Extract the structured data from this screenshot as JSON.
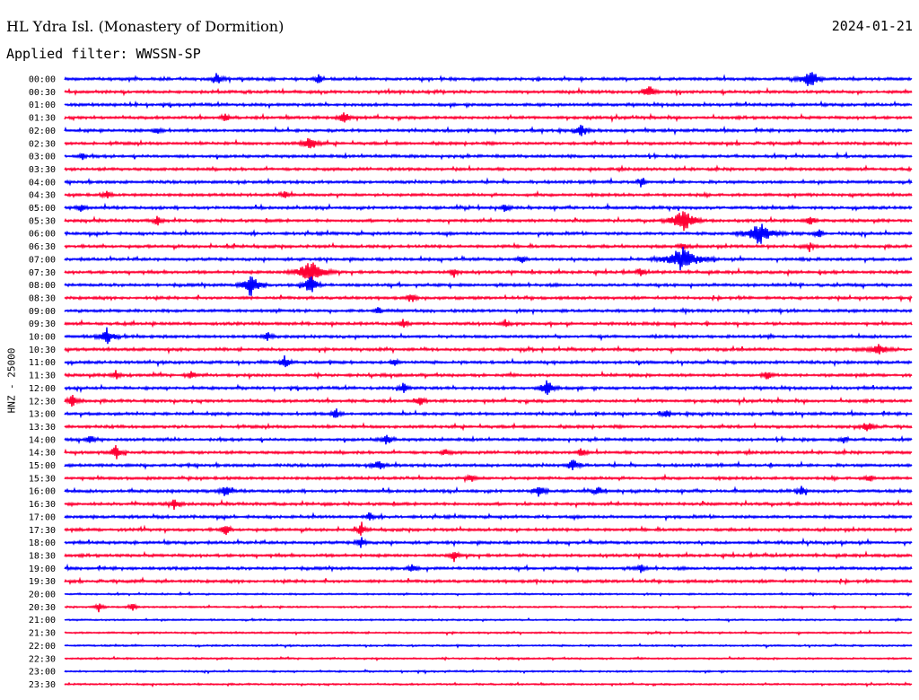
{
  "header": {
    "title": "HL Ydra Isl. (Monastery of Dormition)",
    "date": "2024-01-21",
    "filter": "Applied filter: WWSSN-SP"
  },
  "chart_data": {
    "type": "line",
    "title": "HL Ydra Isl. (Monastery of Dormition)",
    "ylabel": "HNZ - 25000",
    "xlabel": "",
    "grid": false,
    "colors": {
      "even": "#0000ff",
      "odd": "#ff0033"
    },
    "series": [
      {
        "label": "00:00",
        "color": "#0000ff",
        "events": [
          [
            0.18,
            0.5,
            4
          ],
          [
            0.3,
            0.4,
            3
          ],
          [
            0.88,
            0.9,
            6
          ]
        ]
      },
      {
        "label": "00:30",
        "color": "#ff0033",
        "events": [
          [
            0.69,
            0.6,
            4
          ]
        ]
      },
      {
        "label": "01:00",
        "color": "#0000ff",
        "events": []
      },
      {
        "label": "01:30",
        "color": "#ff0033",
        "events": [
          [
            0.33,
            0.5,
            4
          ],
          [
            0.19,
            0.3,
            3
          ]
        ]
      },
      {
        "label": "02:00",
        "color": "#0000ff",
        "events": [
          [
            0.61,
            0.5,
            4
          ],
          [
            0.11,
            0.3,
            3
          ]
        ]
      },
      {
        "label": "02:30",
        "color": "#ff0033",
        "events": [
          [
            0.29,
            0.6,
            5
          ]
        ]
      },
      {
        "label": "03:00",
        "color": "#0000ff",
        "events": [
          [
            0.02,
            0.3,
            3
          ]
        ]
      },
      {
        "label": "03:30",
        "color": "#ff0033",
        "events": []
      },
      {
        "label": "04:00",
        "color": "#0000ff",
        "events": [
          [
            0.68,
            0.4,
            3
          ]
        ]
      },
      {
        "label": "04:30",
        "color": "#ff0033",
        "events": [
          [
            0.26,
            0.3,
            3
          ],
          [
            0.05,
            0.3,
            3
          ]
        ]
      },
      {
        "label": "05:00",
        "color": "#0000ff",
        "events": [
          [
            0.52,
            0.3,
            3
          ],
          [
            0.02,
            0.3,
            3
          ]
        ]
      },
      {
        "label": "05:30",
        "color": "#ff0033",
        "events": [
          [
            0.73,
            1.0,
            8
          ],
          [
            0.11,
            0.4,
            3
          ],
          [
            0.88,
            0.4,
            3
          ]
        ]
      },
      {
        "label": "06:00",
        "color": "#0000ff",
        "events": [
          [
            0.82,
            0.9,
            10
          ],
          [
            0.89,
            0.4,
            3
          ]
        ]
      },
      {
        "label": "06:30",
        "color": "#ff0033",
        "events": [
          [
            0.73,
            0.3,
            3
          ],
          [
            0.88,
            0.3,
            3
          ]
        ]
      },
      {
        "label": "07:00",
        "color": "#0000ff",
        "events": [
          [
            0.73,
            0.9,
            12
          ],
          [
            0.54,
            0.3,
            3
          ]
        ]
      },
      {
        "label": "07:30",
        "color": "#ff0033",
        "events": [
          [
            0.29,
            1.0,
            10
          ],
          [
            0.46,
            0.4,
            3
          ],
          [
            0.68,
            0.3,
            3
          ]
        ]
      },
      {
        "label": "08:00",
        "color": "#0000ff",
        "events": [
          [
            0.22,
            1.0,
            6
          ],
          [
            0.29,
            0.8,
            5
          ]
        ]
      },
      {
        "label": "08:30",
        "color": "#ff0033",
        "events": [
          [
            0.41,
            0.4,
            3
          ]
        ]
      },
      {
        "label": "09:00",
        "color": "#0000ff",
        "events": [
          [
            0.37,
            0.3,
            3
          ]
        ]
      },
      {
        "label": "09:30",
        "color": "#ff0033",
        "events": [
          [
            0.4,
            0.4,
            3
          ],
          [
            0.52,
            0.3,
            3
          ]
        ]
      },
      {
        "label": "10:00",
        "color": "#0000ff",
        "events": [
          [
            0.05,
            0.7,
            5
          ],
          [
            0.24,
            0.4,
            3
          ]
        ]
      },
      {
        "label": "10:30",
        "color": "#ff0033",
        "events": [
          [
            0.96,
            0.4,
            8
          ]
        ]
      },
      {
        "label": "11:00",
        "color": "#0000ff",
        "events": [
          [
            0.26,
            0.5,
            4
          ],
          [
            0.39,
            0.3,
            3
          ]
        ]
      },
      {
        "label": "11:30",
        "color": "#ff0033",
        "events": [
          [
            0.06,
            0.4,
            3
          ],
          [
            0.15,
            0.4,
            3
          ],
          [
            0.83,
            0.4,
            3
          ]
        ]
      },
      {
        "label": "12:00",
        "color": "#0000ff",
        "events": [
          [
            0.57,
            0.7,
            5
          ],
          [
            0.4,
            0.5,
            3
          ]
        ]
      },
      {
        "label": "12:30",
        "color": "#ff0033",
        "events": [
          [
            0.01,
            0.5,
            4
          ],
          [
            0.42,
            0.4,
            3
          ]
        ]
      },
      {
        "label": "13:00",
        "color": "#0000ff",
        "events": [
          [
            0.32,
            0.5,
            3
          ],
          [
            0.71,
            0.3,
            3
          ]
        ]
      },
      {
        "label": "13:30",
        "color": "#ff0033",
        "events": [
          [
            0.95,
            0.5,
            4
          ]
        ]
      },
      {
        "label": "14:00",
        "color": "#0000ff",
        "events": [
          [
            0.38,
            0.5,
            4
          ],
          [
            0.03,
            0.4,
            3
          ],
          [
            0.92,
            0.3,
            3
          ]
        ]
      },
      {
        "label": "14:30",
        "color": "#ff0033",
        "events": [
          [
            0.06,
            0.6,
            4
          ],
          [
            0.61,
            0.4,
            3
          ],
          [
            0.45,
            0.3,
            3
          ]
        ]
      },
      {
        "label": "15:00",
        "color": "#0000ff",
        "events": [
          [
            0.37,
            0.5,
            4
          ],
          [
            0.6,
            0.5,
            4
          ]
        ]
      },
      {
        "label": "15:30",
        "color": "#ff0033",
        "events": [
          [
            0.48,
            0.4,
            3
          ],
          [
            0.95,
            0.3,
            3
          ]
        ]
      },
      {
        "label": "16:00",
        "color": "#0000ff",
        "events": [
          [
            0.19,
            0.5,
            4
          ],
          [
            0.56,
            0.5,
            4
          ],
          [
            0.63,
            0.4,
            3
          ],
          [
            0.87,
            0.4,
            3
          ]
        ]
      },
      {
        "label": "16:30",
        "color": "#ff0033",
        "events": [
          [
            0.13,
            0.5,
            4
          ]
        ]
      },
      {
        "label": "17:00",
        "color": "#0000ff",
        "events": [
          [
            0.36,
            0.4,
            3
          ]
        ]
      },
      {
        "label": "17:30",
        "color": "#ff0033",
        "events": [
          [
            0.19,
            0.5,
            3
          ],
          [
            0.35,
            0.5,
            3
          ]
        ]
      },
      {
        "label": "18:00",
        "color": "#0000ff",
        "events": [
          [
            0.35,
            0.5,
            3
          ]
        ]
      },
      {
        "label": "18:30",
        "color": "#ff0033",
        "events": [
          [
            0.46,
            0.5,
            3
          ]
        ]
      },
      {
        "label": "19:00",
        "color": "#0000ff",
        "events": [
          [
            0.41,
            0.4,
            3
          ],
          [
            0.68,
            0.3,
            3
          ]
        ]
      },
      {
        "label": "19:30",
        "color": "#ff0033",
        "events": []
      },
      {
        "label": "20:00",
        "color": "#0000ff",
        "events": []
      },
      {
        "label": "20:30",
        "color": "#ff0033",
        "events": [
          [
            0.04,
            0.4,
            3
          ],
          [
            0.08,
            0.3,
            3
          ]
        ]
      },
      {
        "label": "21:00",
        "color": "#0000ff",
        "events": []
      },
      {
        "label": "21:30",
        "color": "#ff0033",
        "events": []
      },
      {
        "label": "22:00",
        "color": "#0000ff",
        "events": []
      },
      {
        "label": "22:30",
        "color": "#ff0033",
        "events": []
      },
      {
        "label": "23:00",
        "color": "#0000ff",
        "events": []
      },
      {
        "label": "23:30",
        "color": "#ff0033",
        "events": []
      }
    ]
  }
}
